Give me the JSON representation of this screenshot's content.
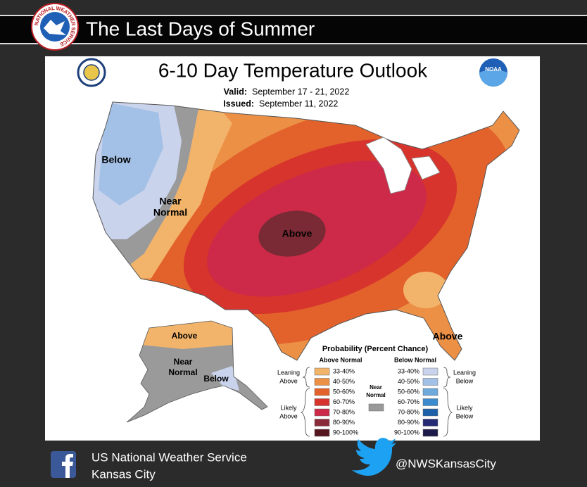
{
  "header": {
    "title": "The Last Days of Summer",
    "logo_text": "NATIONAL WEATHER SERVICE"
  },
  "map": {
    "title": "6-10 Day Temperature Outlook",
    "valid_label": "Valid:",
    "valid": "September 17 - 21, 2022",
    "issued_label": "Issued:",
    "issued": "September 11, 2022",
    "noaa": "NOAA",
    "regions": [
      {
        "lines": [
          "Below"
        ]
      },
      {
        "lines": [
          "Near",
          "Normal"
        ]
      },
      {
        "lines": [
          "Above"
        ]
      },
      {
        "lines": [
          "Above"
        ]
      },
      {
        "lines": [
          "Near",
          "Normal"
        ]
      },
      {
        "lines": [
          "Below"
        ]
      },
      {
        "lines": [
          "Above"
        ]
      }
    ]
  },
  "legend": {
    "title": "Probability (Percent Chance)",
    "above_header": "Above Normal",
    "below_header": "Below Normal",
    "above_bins": [
      {
        "label": "33-40%",
        "color": "#f2b46a"
      },
      {
        "label": "40-50%",
        "color": "#ec9046"
      },
      {
        "label": "50-60%",
        "color": "#e3622b"
      },
      {
        "label": "60-70%",
        "color": "#d6342c"
      },
      {
        "label": "70-80%",
        "color": "#cc2a48"
      },
      {
        "label": "80-90%",
        "color": "#8a2b3a"
      },
      {
        "label": "90-100%",
        "color": "#561620"
      }
    ],
    "below_bins": [
      {
        "label": "33-40%",
        "color": "#c9d3ec"
      },
      {
        "label": "40-50%",
        "color": "#a3c0e6"
      },
      {
        "label": "50-60%",
        "color": "#6ea9dc"
      },
      {
        "label": "60-70%",
        "color": "#3a8ccf"
      },
      {
        "label": "70-80%",
        "color": "#1b60a8"
      },
      {
        "label": "80-90%",
        "color": "#242b74"
      },
      {
        "label": "90-100%",
        "color": "#1c1a48"
      }
    ],
    "near": {
      "lines": [
        "Near",
        "Normal"
      ],
      "color": "#999999"
    },
    "leaning_above": [
      "Leaning",
      "Above"
    ],
    "likely_above": [
      "Likely",
      "Above"
    ],
    "leaning_below": [
      "Leaning",
      "Below"
    ],
    "likely_below": [
      "Likely",
      "Below"
    ]
  },
  "footer": {
    "org": "US National Weather Service",
    "office": "Kansas City",
    "handle": "@NWSKansasCity"
  }
}
